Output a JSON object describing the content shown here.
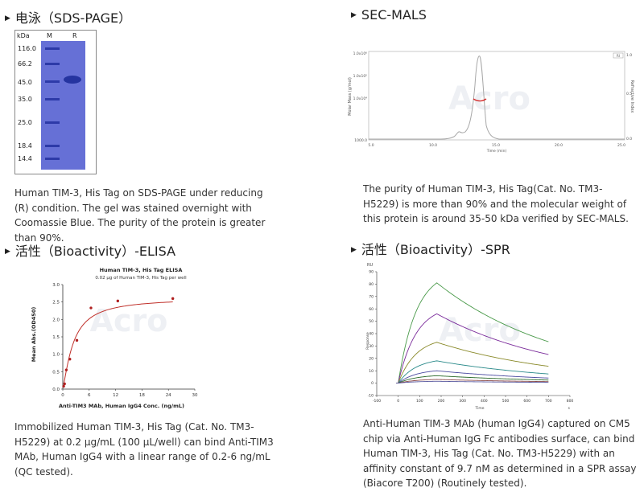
{
  "sections": [
    {
      "title": "电泳（SDS-PAGE）",
      "caption": "Human TIM-3, His Tag on SDS-PAGE under reducing (R) condition. The gel was stained overnight with Coomassie Blue. The purity of the protein is greater than 90%.",
      "gel": {
        "unit_label": "kDa",
        "lane_labels": [
          "M",
          "R"
        ],
        "markers": [
          "116.0",
          "66.2",
          "45.0",
          "35.0",
          "25.0",
          "18.4",
          "14.4"
        ]
      }
    },
    {
      "title": "SEC-MALS",
      "caption": "The purity of Human TIM-3, His Tag(Cat. No. TM3-H5229) is more than 90% and the molecular weight of this protein is around 35-50 kDa verified by SEC-MALS.",
      "plot": {
        "ylabel": "Molar Mass (g/mol)",
        "y2label": "Refractive Index",
        "xlabel": "Time (min)",
        "yticks": [
          "1.0x10⁶",
          "1.0x10⁵",
          "1.0x10⁴",
          "1000.0"
        ],
        "y2ticks": [
          "1.0",
          "0.5",
          "0.0"
        ],
        "xticks": [
          "5.0",
          "10.0",
          "15.0",
          "20.0",
          "25.0"
        ],
        "legend": "RI"
      }
    },
    {
      "title": "活性（Bioactivity）-ELISA",
      "caption": "Immobilized Human TIM-3, His Tag (Cat. No. TM3-H5229) at 0.2 μg/mL (100 μL/well) can bind Anti-TIM3 MAb, Human IgG4 with a linear range of 0.2-6 ng/mL (QC tested).",
      "chart_data": {
        "type": "scatter",
        "title": "Human TIM-3, His Tag ELISA",
        "subtitle": "0.02 μg of Human TIM-3, His Tag per well",
        "xlabel": "Anti-TIM3 MAb, Human IgG4 Conc. (ng/mL)",
        "ylabel": "Mean Abs.(OD450)",
        "xlim": [
          0,
          30
        ],
        "ylim": [
          0,
          3.0
        ],
        "xticks": [
          "0",
          "6",
          "12",
          "18",
          "24",
          "30"
        ],
        "yticks": [
          "0.0",
          "0.5",
          "1.0",
          "1.5",
          "2.0",
          "2.5",
          "3.0"
        ],
        "x": [
          0.2,
          0.4,
          0.8,
          1.6,
          3.2,
          6.4,
          12.5,
          25
        ],
        "y": [
          0.08,
          0.15,
          0.55,
          0.86,
          1.4,
          2.33,
          2.53,
          2.6
        ]
      }
    },
    {
      "title": "活性（Bioactivity）-SPR",
      "caption": "Anti-Human TIM-3 MAb (human IgG4) captured on CM5 chip via Anti-Human IgG Fc antibodies surface, can bind Human TIM-3, His Tag (Cat. No. TM3-H5229) with an affinity constant of 9.7 nM as determined in a SPR assay (Biacore T200) (Routinely tested).",
      "plot": {
        "unit_label": "RU",
        "ylabel": "Response",
        "xlabel": "Time",
        "x_unit": "s",
        "yticks": [
          "90",
          "80",
          "70",
          "60",
          "50",
          "40",
          "30",
          "20",
          "10",
          "0",
          "-10"
        ],
        "xticks": [
          "-100",
          "0",
          "100",
          "200",
          "300",
          "400",
          "500",
          "600",
          "700",
          "800"
        ],
        "peaks_ru": [
          81,
          56,
          33,
          18,
          10,
          6,
          3,
          1.5
        ],
        "curve_colors": [
          "#4a9a4a",
          "#7a2a9a",
          "#8a8a2a",
          "#2a8a8a",
          "#4a4aa0",
          "#2a6a2a",
          "#8a4a4a",
          "#5a5aa0"
        ]
      }
    }
  ],
  "watermark": "Acro"
}
